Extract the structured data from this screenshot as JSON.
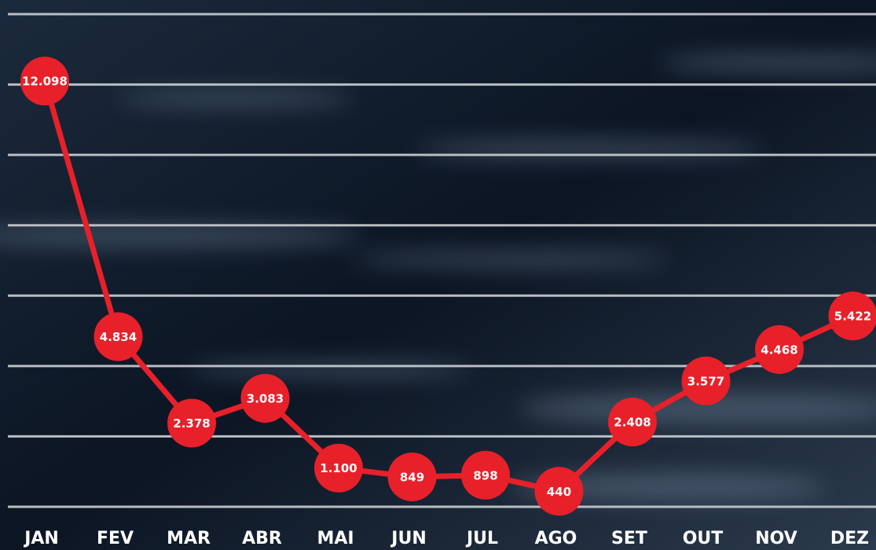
{
  "chart_data": {
    "type": "line",
    "categories": [
      "JAN",
      "FEV",
      "MAR",
      "ABR",
      "MAI",
      "JUN",
      "JUL",
      "AGO",
      "SET",
      "OUT",
      "NOV",
      "DEZ"
    ],
    "values": [
      12098,
      4834,
      2378,
      3083,
      1100,
      849,
      898,
      440,
      2408,
      3577,
      4468,
      5422
    ],
    "value_labels": [
      "12.098",
      "4.834",
      "2.378",
      "3.083",
      "1.100",
      "849",
      "898",
      "440",
      "2.408",
      "3.577",
      "4.468",
      "5.422"
    ],
    "color": "#e8202a",
    "ylim": [
      0,
      14000
    ],
    "yticks": [
      0,
      2000,
      4000,
      6000,
      8000,
      10000,
      12000,
      14000
    ],
    "grid": true
  }
}
